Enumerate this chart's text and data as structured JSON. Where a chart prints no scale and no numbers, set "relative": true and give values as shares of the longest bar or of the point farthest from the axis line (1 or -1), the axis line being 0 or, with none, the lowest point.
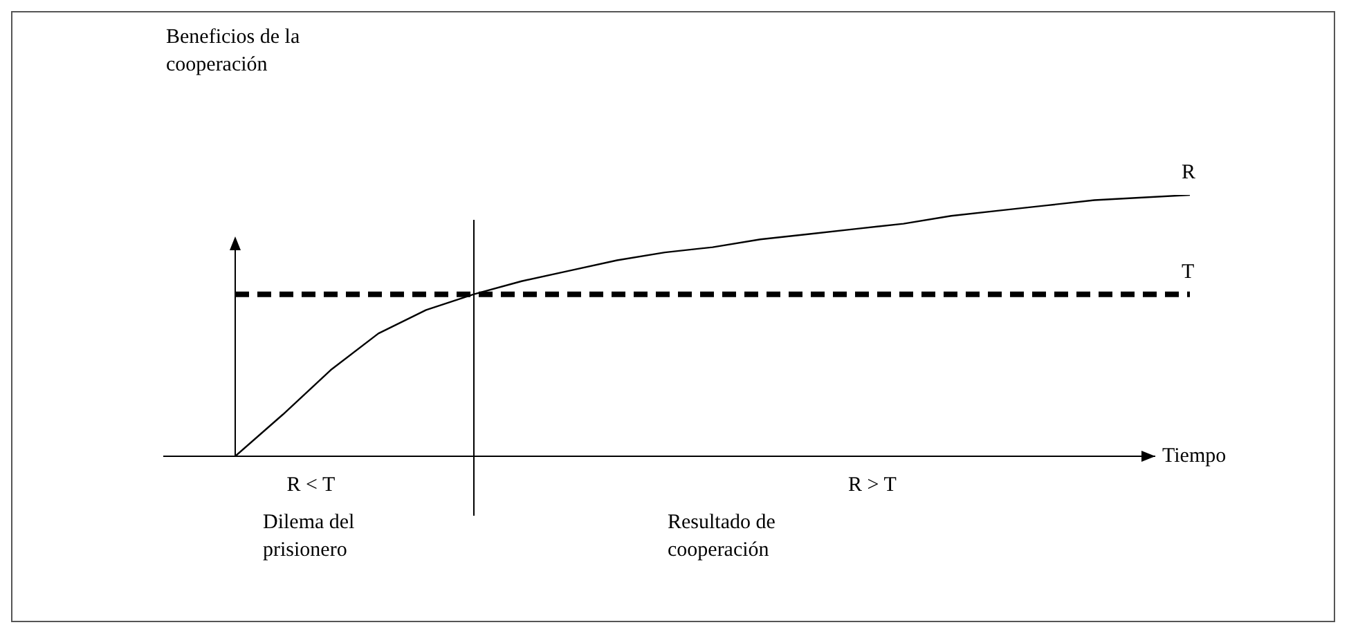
{
  "chart_data": {
    "type": "line",
    "relative": true,
    "xlabel": "Tiempo",
    "legend": false,
    "marker": "none",
    "tick_labels": false,
    "categories": [
      null,
      null,
      null,
      null,
      null,
      null,
      null,
      null,
      null,
      null,
      null,
      null,
      null,
      null,
      null,
      null,
      null,
      null,
      null,
      null,
      null
    ],
    "series": [
      {
        "name": "R",
        "color": "#000000",
        "line_style": "solid",
        "values": [
          0,
          0.16,
          0.33,
          0.47,
          0.56,
          0.62,
          0.67,
          0.71,
          0.75,
          0.78,
          0.8,
          0.83,
          0.85,
          0.87,
          0.89,
          0.92,
          0.94,
          0.96,
          0.98,
          0.99,
          1
        ]
      },
      {
        "name": "T",
        "color": "#000000",
        "line_style": "dashed",
        "values": [
          0.62,
          0.62,
          0.62,
          0.62,
          0.62,
          0.62,
          0.62,
          0.62,
          0.62,
          0.62,
          0.62,
          0.62,
          0.62,
          0.62,
          0.62,
          0.62,
          0.62,
          0.62,
          0.62,
          0.62,
          0.62
        ]
      }
    ],
    "annotations": [
      "R < T",
      "Dilema del prisionero",
      "R > T",
      "Resultado de cooperación",
      "Beneficios de la cooperación"
    ]
  }
}
